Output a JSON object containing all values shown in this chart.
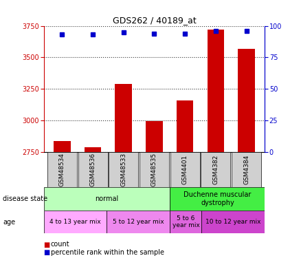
{
  "title": "GDS262 / 40189_at",
  "samples": [
    "GSM48534",
    "GSM48536",
    "GSM48533",
    "GSM48535",
    "GSM4401",
    "GSM4382",
    "GSM4384"
  ],
  "counts": [
    2840,
    2790,
    3290,
    2995,
    3160,
    3720,
    3570
  ],
  "percentile_ranks": [
    93,
    93,
    95,
    94,
    94,
    96,
    96
  ],
  "ylim": [
    2750,
    3750
  ],
  "yticks": [
    2750,
    3000,
    3250,
    3500,
    3750
  ],
  "right_ylim": [
    0,
    100
  ],
  "right_yticks": [
    0,
    25,
    50,
    75,
    100
  ],
  "bar_color": "#cc0000",
  "dot_color": "#0000cc",
  "disease_state_groups": [
    {
      "label": "normal",
      "start": 0,
      "end": 4,
      "color": "#bbffbb"
    },
    {
      "label": "Duchenne muscular\ndystrophy",
      "start": 4,
      "end": 7,
      "color": "#44ee44"
    }
  ],
  "age_groups": [
    {
      "label": "4 to 13 year mix",
      "start": 0,
      "end": 2,
      "color": "#ffaaff"
    },
    {
      "label": "5 to 12 year mix",
      "start": 2,
      "end": 4,
      "color": "#ee88ee"
    },
    {
      "label": "5 to 6\nyear mix",
      "start": 4,
      "end": 5,
      "color": "#dd66dd"
    },
    {
      "label": "10 to 12 year mix",
      "start": 5,
      "end": 7,
      "color": "#cc44cc"
    }
  ],
  "left_label_color": "#cc0000",
  "right_label_color": "#0000cc",
  "legend_items": [
    {
      "label": "count",
      "color": "#cc0000"
    },
    {
      "label": "percentile rank within the sample",
      "color": "#0000cc"
    }
  ],
  "fig_width": 4.38,
  "fig_height": 3.75,
  "dpi": 100
}
